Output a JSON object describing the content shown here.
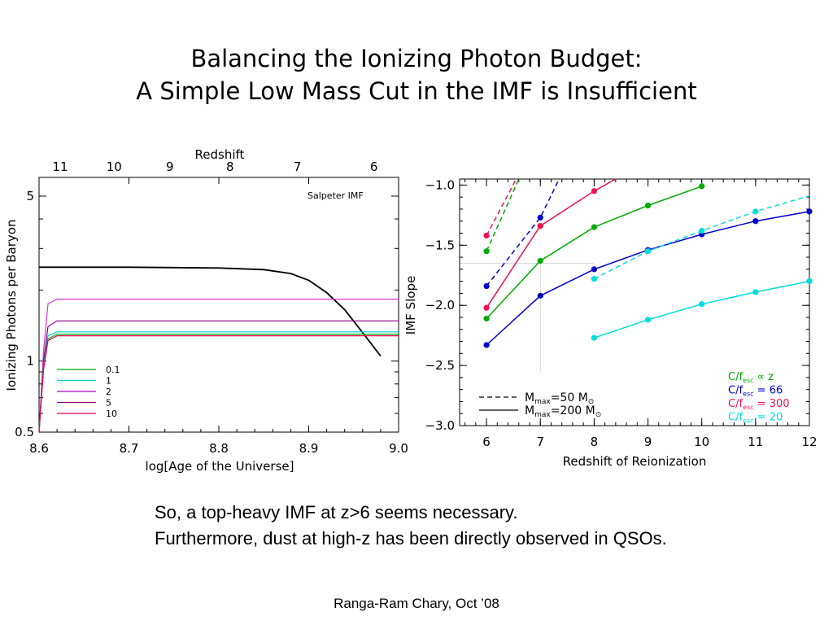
{
  "slide": {
    "title_line1": "Balancing the Ionizing Photon Budget:",
    "title_line2": "A Simple Low Mass Cut in the IMF is Insufficient",
    "caption_line1": "So, a top-heavy IMF at z>6 seems necessary.",
    "caption_line2": "Furthermore, dust at high-z has been directly observed in QSOs.",
    "footer": "Ranga-Ram Chary, Oct ’08"
  },
  "chart_data": [
    {
      "type": "line",
      "xlabel": "log[Age of the Universe]",
      "ylabel": "Ionizing Photons per Baryon",
      "top_axis_label": "Redshift",
      "annotation": "Salpeter IMF",
      "xlim": [
        8.6,
        9.0
      ],
      "ylim": [
        0.5,
        6.0
      ],
      "yscale": "log",
      "x_ticks": [
        "8.6",
        "8.7",
        "8.8",
        "8.9",
        "9.0"
      ],
      "y_ticks": [
        "0.5",
        "1",
        "5"
      ],
      "top_ticks": [
        {
          "label": "11",
          "x": 8.6235
        },
        {
          "label": "10",
          "x": 8.6835
        },
        {
          "label": "9",
          "x": 8.7455
        },
        {
          "label": "8",
          "x": 8.8125
        },
        {
          "label": "7",
          "x": 8.8875
        },
        {
          "label": "6",
          "x": 8.9725
        }
      ],
      "grid": false,
      "legend_position": "bottom-left",
      "legend": [
        {
          "label": "0.1",
          "color": "#00aa00"
        },
        {
          "label": "1",
          "color": "#00cccc"
        },
        {
          "label": "2",
          "color": "#aa00cc"
        },
        {
          "label": "5",
          "color": "#880088"
        },
        {
          "label": "10",
          "color": "#dd0055"
        }
      ],
      "series": [
        {
          "color": "#000000",
          "x": [
            8.6,
            8.7,
            8.8,
            8.85,
            8.88,
            8.9,
            8.92,
            8.94,
            8.96,
            8.98
          ],
          "y": [
            2.5,
            2.5,
            2.48,
            2.44,
            2.35,
            2.2,
            1.95,
            1.65,
            1.32,
            1.05
          ]
        },
        {
          "color": "#dd33dd",
          "x": [
            8.6,
            8.605,
            8.61,
            8.62,
            9.0
          ],
          "y": [
            0.5,
            1.1,
            1.75,
            1.83,
            1.83
          ]
        },
        {
          "color": "#880088",
          "x": [
            8.6,
            8.605,
            8.61,
            8.62,
            9.0
          ],
          "y": [
            0.5,
            1.0,
            1.4,
            1.48,
            1.48
          ]
        },
        {
          "color": "#00cccc",
          "x": [
            8.6,
            8.605,
            8.61,
            8.62,
            9.0
          ],
          "y": [
            0.5,
            0.95,
            1.28,
            1.33,
            1.33
          ]
        },
        {
          "color": "#00aa00",
          "x": [
            8.6,
            8.605,
            8.61,
            8.62,
            9.0
          ],
          "y": [
            0.5,
            0.93,
            1.24,
            1.3,
            1.3
          ]
        },
        {
          "color": "#dd0055",
          "x": [
            8.6,
            8.605,
            8.61,
            8.62,
            9.0
          ],
          "y": [
            0.5,
            0.92,
            1.22,
            1.28,
            1.28
          ]
        }
      ]
    },
    {
      "type": "line",
      "xlabel": "Redshift of Reionization",
      "ylabel": "IMF Slope",
      "xlim": [
        5.5,
        12.0
      ],
      "ylim": [
        -3.0,
        -0.95
      ],
      "x_ticks": [
        "6",
        "7",
        "8",
        "9",
        "10",
        "11",
        "12"
      ],
      "y_ticks": [
        "−1.0",
        "−1.5",
        "−2.0",
        "−2.5",
        "−3.0"
      ],
      "grid": false,
      "style_legend": [
        {
          "label": "M",
          "sub": "max",
          "rest": "=50 M",
          "sun": "⊙",
          "dash": true
        },
        {
          "label": "M",
          "sub": "max",
          "rest": "=200 M",
          "sun": "⊙",
          "dash": false
        }
      ],
      "color_legend": [
        {
          "prefix": "C/f",
          "sub": "esc",
          "value": " ∝ z",
          "color": "#00aa00"
        },
        {
          "prefix": "C/f",
          "sub": "esc",
          "value": " = 66",
          "color": "#0000cc"
        },
        {
          "prefix": "C/f",
          "sub": "esc",
          "value": " = 300",
          "color": "#ee1155"
        },
        {
          "prefix": "C/f",
          "sub": "esc",
          "value": " = 20",
          "color": "#00dddd"
        }
      ],
      "series": [
        {
          "color": "#0000cc",
          "dash": false,
          "x": [
            6,
            7,
            8,
            9,
            10,
            11,
            12
          ],
          "y": [
            -2.33,
            -1.92,
            -1.7,
            -1.54,
            -1.41,
            -1.3,
            -1.22
          ]
        },
        {
          "color": "#00aa00",
          "dash": false,
          "x": [
            6,
            7,
            8,
            9,
            10
          ],
          "y": [
            -2.11,
            -1.63,
            -1.35,
            -1.17,
            -1.01
          ]
        },
        {
          "color": "#ee1155",
          "dash": false,
          "x": [
            6,
            7,
            8,
            8.4
          ],
          "y": [
            -2.02,
            -1.34,
            -1.05,
            -0.95
          ]
        },
        {
          "color": "#00dddd",
          "dash": false,
          "x": [
            8,
            9,
            10,
            11,
            12
          ],
          "y": [
            -2.27,
            -2.12,
            -1.99,
            -1.89,
            -1.8
          ]
        },
        {
          "color": "#0000cc",
          "dash": true,
          "x": [
            6,
            7,
            7.35
          ],
          "y": [
            -1.84,
            -1.27,
            -0.95
          ]
        },
        {
          "color": "#00aa00",
          "dash": true,
          "x": [
            6,
            6.6
          ],
          "y": [
            -1.55,
            -0.95
          ]
        },
        {
          "color": "#ee1155",
          "dash": true,
          "x": [
            6,
            6.55
          ],
          "y": [
            -1.42,
            -0.95
          ]
        },
        {
          "color": "#00dddd",
          "dash": true,
          "x": [
            8,
            9,
            10,
            11,
            12
          ],
          "y": [
            -1.78,
            -1.55,
            -1.38,
            -1.22,
            -1.09
          ]
        }
      ],
      "points": [
        {
          "color": "#0000cc",
          "x": [
            6,
            7,
            8,
            9,
            10,
            11,
            12,
            6,
            7
          ],
          "y": [
            -2.33,
            -1.92,
            -1.7,
            -1.54,
            -1.41,
            -1.3,
            -1.22,
            -1.84,
            -1.27
          ]
        },
        {
          "color": "#00aa00",
          "x": [
            6,
            7,
            8,
            9,
            10,
            6
          ],
          "y": [
            -2.11,
            -1.63,
            -1.35,
            -1.17,
            -1.01,
            -1.55
          ]
        },
        {
          "color": "#ee1155",
          "x": [
            6,
            7,
            8,
            6
          ],
          "y": [
            -2.02,
            -1.34,
            -1.05,
            -1.42
          ]
        },
        {
          "color": "#00dddd",
          "x": [
            8,
            9,
            10,
            11,
            12,
            8,
            9,
            10,
            11
          ],
          "y": [
            -2.27,
            -2.12,
            -1.99,
            -1.89,
            -1.8,
            -1.78,
            -1.55,
            -1.38,
            -1.22
          ]
        }
      ]
    }
  ]
}
